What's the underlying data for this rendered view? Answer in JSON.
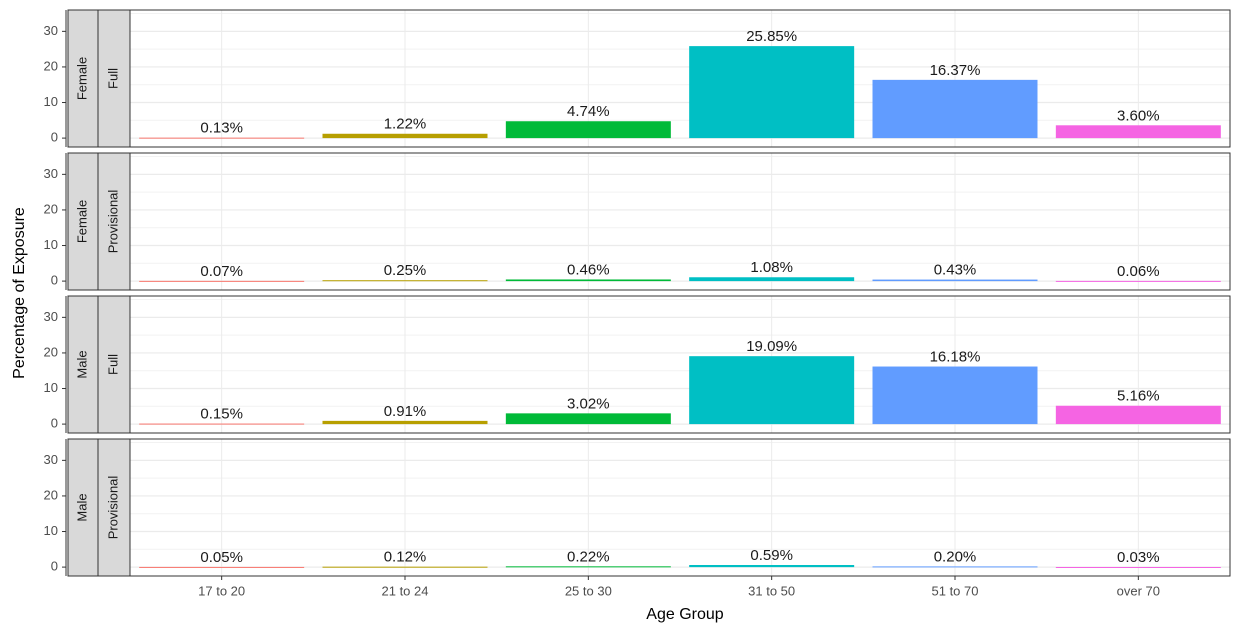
{
  "x_label": "Age Group",
  "y_label": "Percentage of Exposure",
  "categories": [
    "17 to 20",
    "21 to 24",
    "25 to 30",
    "31 to 50",
    "51 to 70",
    "over 70"
  ],
  "colors": [
    "#F8766D",
    "#B79F00",
    "#00BA38",
    "#00BFC4",
    "#619CFF",
    "#F564E3"
  ],
  "chart_data": [
    {
      "type": "bar",
      "facet": [
        "Female",
        "Full"
      ],
      "values": [
        0.13,
        1.22,
        4.74,
        25.85,
        16.37,
        3.6
      ],
      "value_labels": [
        "0.13%",
        "1.22%",
        "4.74%",
        "25.85%",
        "16.37%",
        "3.60%"
      ],
      "ylim": [
        -2.5,
        36
      ],
      "yticks": [
        0,
        10,
        20,
        30
      ],
      "grid": true
    },
    {
      "type": "bar",
      "facet": [
        "Female",
        "Provisional"
      ],
      "values": [
        0.07,
        0.25,
        0.46,
        1.08,
        0.43,
        0.06
      ],
      "value_labels": [
        "0.07%",
        "0.25%",
        "0.46%",
        "1.08%",
        "0.43%",
        "0.06%"
      ],
      "ylim": [
        -2.5,
        36
      ],
      "yticks": [
        0,
        10,
        20,
        30
      ],
      "grid": true
    },
    {
      "type": "bar",
      "facet": [
        "Male",
        "Full"
      ],
      "values": [
        0.15,
        0.91,
        3.02,
        19.09,
        16.18,
        5.16
      ],
      "value_labels": [
        "0.15%",
        "0.91%",
        "3.02%",
        "19.09%",
        "16.18%",
        "5.16%"
      ],
      "ylim": [
        -2.5,
        36
      ],
      "yticks": [
        0,
        10,
        20,
        30
      ],
      "grid": true
    },
    {
      "type": "bar",
      "facet": [
        "Male",
        "Provisional"
      ],
      "values": [
        0.05,
        0.12,
        0.22,
        0.59,
        0.2,
        0.03
      ],
      "value_labels": [
        "0.05%",
        "0.12%",
        "0.22%",
        "0.59%",
        "0.20%",
        "0.03%"
      ],
      "ylim": [
        -2.5,
        36
      ],
      "yticks": [
        0,
        10,
        20,
        30
      ],
      "grid": true
    }
  ]
}
